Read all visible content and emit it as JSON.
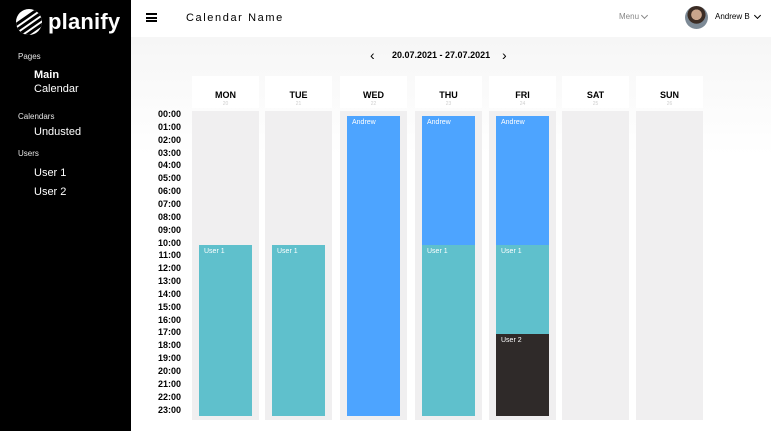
{
  "brand": {
    "name": "planify"
  },
  "sidebar": {
    "sections": [
      {
        "label": "Pages",
        "items": [
          {
            "label": "Main",
            "active": true
          },
          {
            "label": "Calendar",
            "active": false
          }
        ]
      },
      {
        "label": "Calendars",
        "items": [
          {
            "label": "Undusted",
            "active": false
          }
        ]
      },
      {
        "label": "Users",
        "items": [
          {
            "label": "User 1",
            "active": false
          },
          {
            "label": "User 2",
            "active": false
          }
        ]
      }
    ]
  },
  "header": {
    "title": "Calendar Name",
    "menu_label": "Menu",
    "user_name": "Andrew B",
    "menu_icon": "hamburger-icon"
  },
  "calendar": {
    "range_label": "20.07.2021 - 27.07.2021",
    "days": [
      {
        "name": "MON",
        "num": "20"
      },
      {
        "name": "TUE",
        "num": "21"
      },
      {
        "name": "WED",
        "num": "22"
      },
      {
        "name": "THU",
        "num": "23"
      },
      {
        "name": "FRI",
        "num": "24"
      },
      {
        "name": "SAT",
        "num": "25"
      },
      {
        "name": "SUN",
        "num": "26"
      }
    ],
    "hours": [
      "00:00",
      "01:00",
      "02:00",
      "03:00",
      "04:00",
      "05:00",
      "06:00",
      "07:00",
      "08:00",
      "09:00",
      "10:00",
      "11:00",
      "12:00",
      "13:00",
      "14:00",
      "15:00",
      "16:00",
      "17:00",
      "18:00",
      "19:00",
      "20:00",
      "21:00",
      "22:00",
      "23:00"
    ],
    "events": [
      {
        "day": 0,
        "label": "User 1",
        "start": 10,
        "end": 24,
        "color": "teal"
      },
      {
        "day": 1,
        "label": "User 1",
        "start": 10,
        "end": 24,
        "color": "teal"
      },
      {
        "day": 2,
        "label": "Andrew",
        "start": 0,
        "end": 24,
        "color": "blue"
      },
      {
        "day": 3,
        "label": "Andrew",
        "start": 0,
        "end": 10,
        "color": "blue"
      },
      {
        "day": 3,
        "label": "User 1",
        "start": 10,
        "end": 24,
        "color": "teal"
      },
      {
        "day": 4,
        "label": "Andrew",
        "start": 0,
        "end": 10,
        "color": "blue"
      },
      {
        "day": 4,
        "label": "User 1",
        "start": 10,
        "end": 17,
        "color": "teal"
      },
      {
        "day": 4,
        "label": "User 2",
        "start": 17,
        "end": 24,
        "color": "dark"
      }
    ]
  },
  "colors": {
    "teal": "#5fc0cc",
    "blue": "#4da4ff",
    "dark": "#2f2a29",
    "sidebar": "#000000"
  }
}
